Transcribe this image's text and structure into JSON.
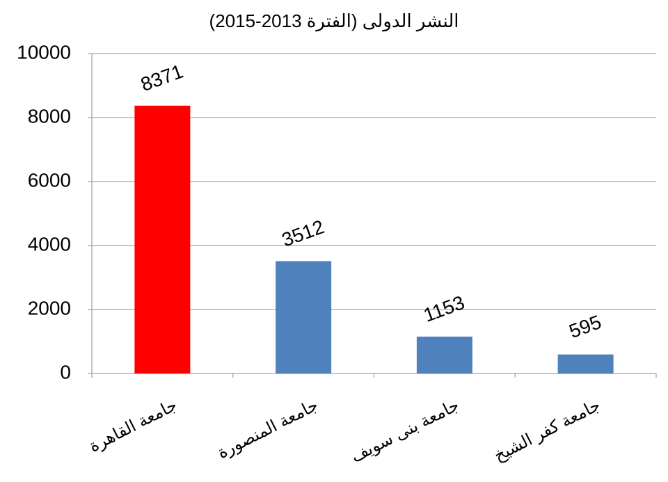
{
  "chart_data": {
    "type": "bar",
    "title": "النشر الدولى (الفترة 2013-2015)",
    "categories": [
      "جامعة القاهرة",
      "جامعة المنصورة",
      "جامعة بنى سويف",
      "جامعة كفر الشيخ"
    ],
    "values": [
      8371,
      3512,
      1153,
      595
    ],
    "colors": [
      "#ff0000",
      "#4f81bd",
      "#4f81bd",
      "#4f81bd"
    ],
    "ylim": [
      0,
      10000
    ],
    "yticks": [
      0,
      2000,
      4000,
      6000,
      8000,
      10000
    ],
    "grid": true
  }
}
